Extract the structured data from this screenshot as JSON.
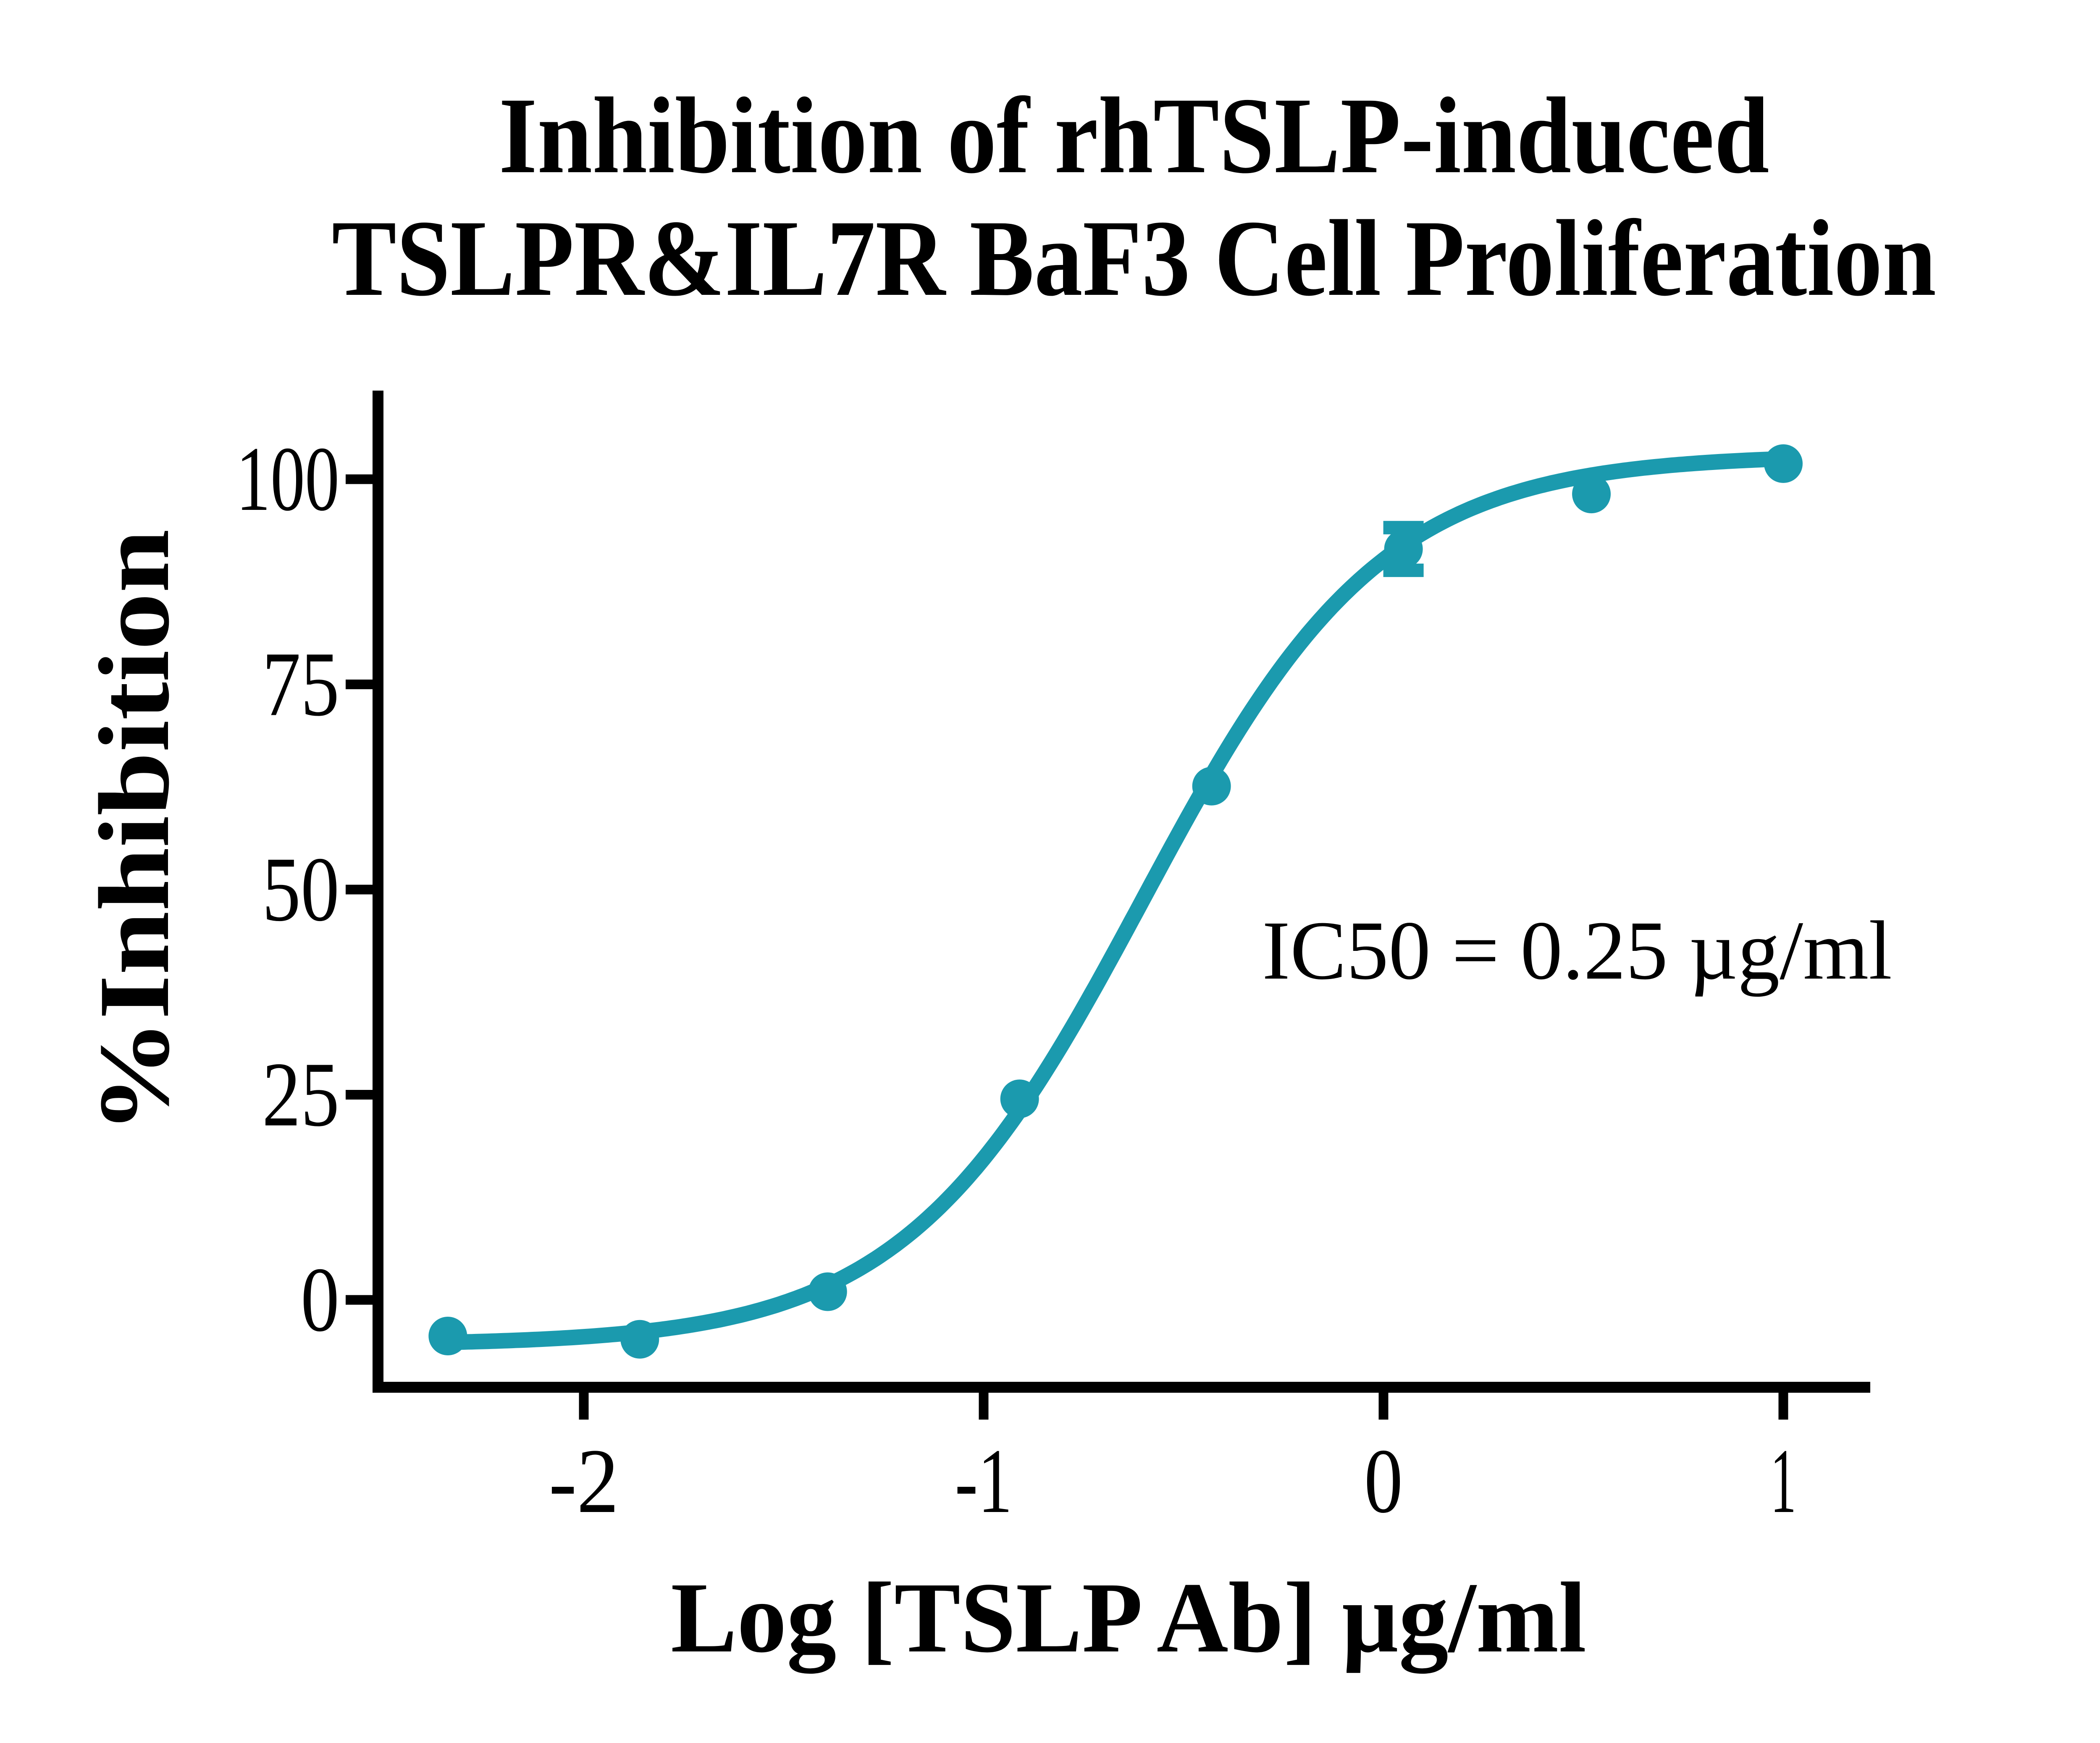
{
  "title": {
    "line1": "Inhibition of rhTSLP-induced",
    "line2": "TSLPR&IL7R BaF3 Cell Proliferation"
  },
  "annotation": {
    "text": "IC50 = 0.25 µg/ml"
  },
  "colors": {
    "curve": "#1B9AAE",
    "axis": "#000000",
    "text": "#000000",
    "background": "#FFFFFF"
  },
  "chart_data": {
    "type": "scatter",
    "title": "Inhibition of rhTSLP-induced TSLPR&IL7R BaF3 Cell Proliferation",
    "xlabel": "Log [TSLP Ab] µg/ml",
    "ylabel": "%Inhibition",
    "xlim": [
      -2.53,
      1.22
    ],
    "ylim": [
      -11,
      111
    ],
    "x_ticks": [
      {
        "value": -2,
        "label": "-2"
      },
      {
        "value": -1,
        "label": "-1"
      },
      {
        "value": 0,
        "label": "0"
      },
      {
        "value": 1,
        "label": "1"
      }
    ],
    "y_ticks": [
      {
        "value": 0,
        "label": "0"
      },
      {
        "value": 25,
        "label": "25"
      },
      {
        "value": 50,
        "label": "50"
      },
      {
        "value": 75,
        "label": "75"
      },
      {
        "value": 100,
        "label": "100"
      }
    ],
    "grid": false,
    "legend": "none",
    "series": [
      {
        "name": "TSLP Ab",
        "x": [
          -2.34,
          -1.86,
          -1.39,
          -0.91,
          -0.43,
          0.05,
          0.52,
          1.0
        ],
        "y": [
          -4.4,
          -4.8,
          1.0,
          24.5,
          62.6,
          91.5,
          98.2,
          101.9
        ],
        "y_err": [
          0,
          0,
          0,
          0,
          0,
          2.6,
          0,
          0
        ]
      }
    ],
    "fit": {
      "model": "4PL",
      "bottom": -5.5,
      "top": 103,
      "log_ic50": -0.602,
      "hill": 1.45,
      "x_start": -2.34,
      "x_end": 1.0
    },
    "annotation": "IC50 = 0.25 µg/ml"
  }
}
